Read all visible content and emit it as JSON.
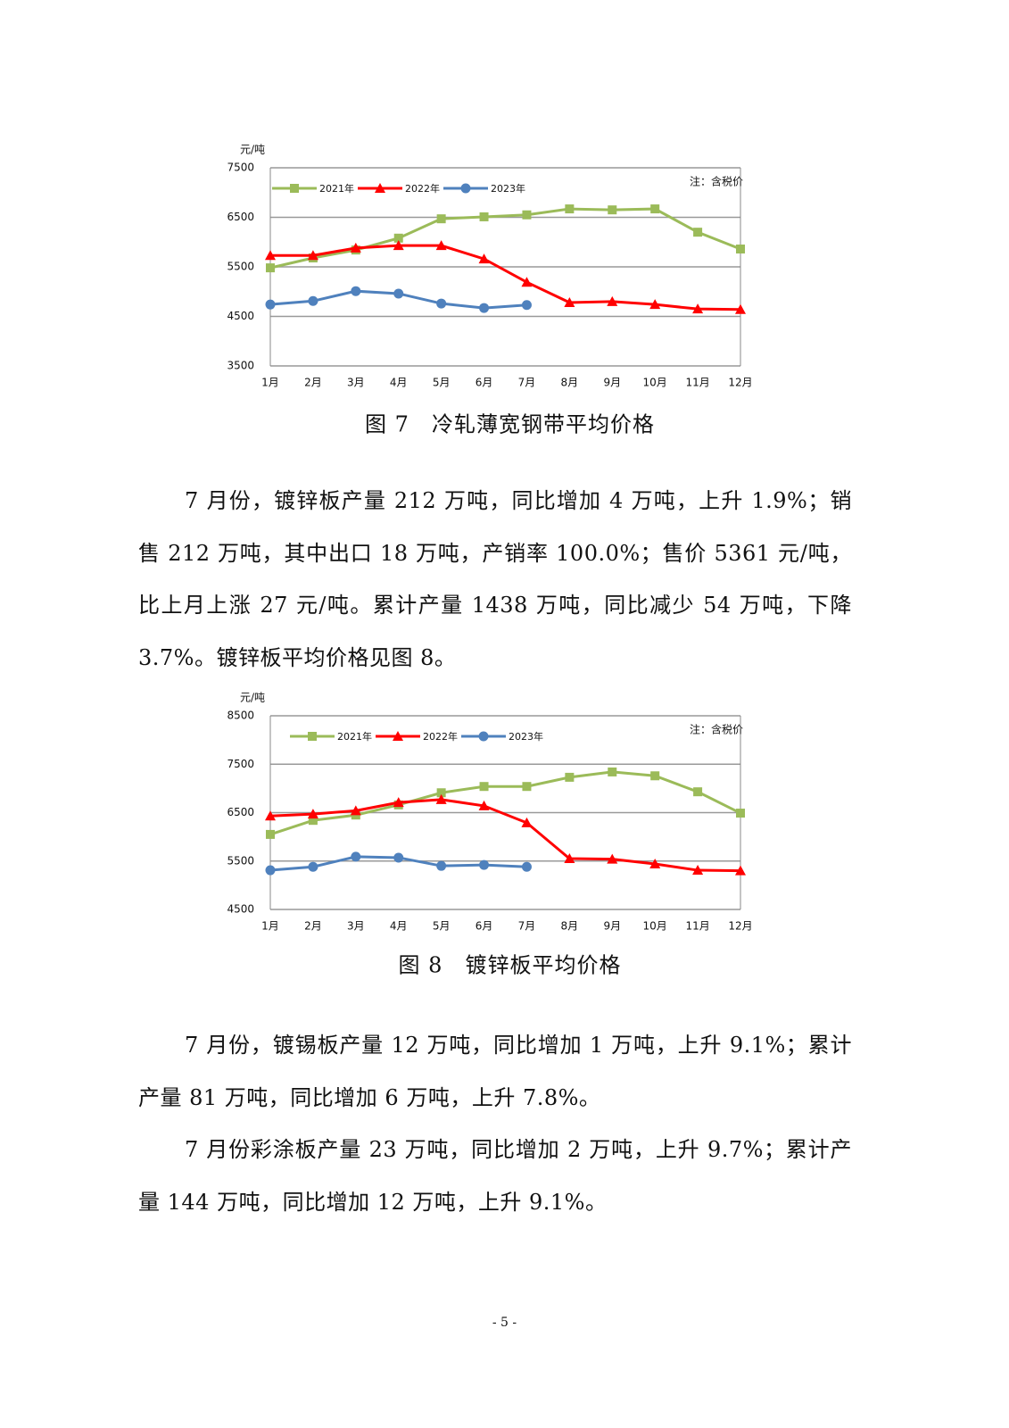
{
  "chart_data": [
    {
      "type": "line",
      "y_label": "元/吨",
      "note": "注：含税价",
      "caption": "图 7　冷轧薄宽钢带平均价格",
      "categories": [
        "1月",
        "2月",
        "3月",
        "4月",
        "5月",
        "6月",
        "7月",
        "8月",
        "9月",
        "10月",
        "11月",
        "12月"
      ],
      "ylim": [
        3500,
        7500
      ],
      "yticks": [
        3500,
        4500,
        5500,
        6500,
        7500
      ],
      "grid": true,
      "series": [
        {
          "name": "2021年",
          "color": "#9bbb59",
          "marker": "square",
          "values": [
            5480,
            5680,
            5840,
            6080,
            6470,
            6510,
            6550,
            6670,
            6650,
            6670,
            6200,
            5860
          ]
        },
        {
          "name": "2022年",
          "color": "#ff0000",
          "marker": "triangle",
          "values": [
            5730,
            5730,
            5880,
            5930,
            5930,
            5660,
            5190,
            4780,
            4800,
            4740,
            4650,
            4640
          ]
        },
        {
          "name": "2023年",
          "color": "#4f81bd",
          "marker": "circle",
          "values": [
            4740,
            4810,
            5010,
            4960,
            4760,
            4670,
            4730,
            null,
            null,
            null,
            null,
            null
          ]
        }
      ]
    },
    {
      "type": "line",
      "y_label": "元/吨",
      "note": "注：含税价",
      "caption": "图 8　镀锌板平均价格",
      "categories": [
        "1月",
        "2月",
        "3月",
        "4月",
        "5月",
        "6月",
        "7月",
        "8月",
        "9月",
        "10月",
        "11月",
        "12月"
      ],
      "ylim": [
        4500,
        8500
      ],
      "yticks": [
        4500,
        5500,
        6500,
        7500,
        8500
      ],
      "grid": true,
      "series": [
        {
          "name": "2021年",
          "color": "#9bbb59",
          "marker": "square",
          "values": [
            6050,
            6340,
            6450,
            6660,
            6910,
            7040,
            7040,
            7230,
            7340,
            7260,
            6930,
            6490
          ]
        },
        {
          "name": "2022年",
          "color": "#ff0000",
          "marker": "triangle",
          "values": [
            6430,
            6470,
            6540,
            6710,
            6770,
            6640,
            6290,
            5550,
            5540,
            5440,
            5310,
            5300
          ]
        },
        {
          "name": "2023年",
          "color": "#4f81bd",
          "marker": "circle",
          "values": [
            5310,
            5380,
            5590,
            5570,
            5400,
            5420,
            5380,
            null,
            null,
            null,
            null,
            null
          ]
        }
      ]
    }
  ],
  "paragraphs": [
    "7 月份，镀锌板产量 212 万吨，同比增加 4 万吨，上升 1.9%；销售 212 万吨，其中出口 18 万吨，产销率 100.0%；售价 5361 元/吨，比上月上涨 27 元/吨。累计产量 1438 万吨，同比减少 54 万吨，下降 3.7%。镀锌板平均价格见图 8。",
    "7 月份，镀锡板产量 12 万吨，同比增加 1 万吨，上升 9.1%；累计产量 81 万吨，同比增加 6 万吨，上升 7.8%。",
    "7 月份彩涂板产量 23 万吨，同比增加 2 万吨，上升 9.7%；累计产量 144 万吨，同比增加 12 万吨，上升 9.1%。"
  ],
  "page_number": "- 5 -"
}
